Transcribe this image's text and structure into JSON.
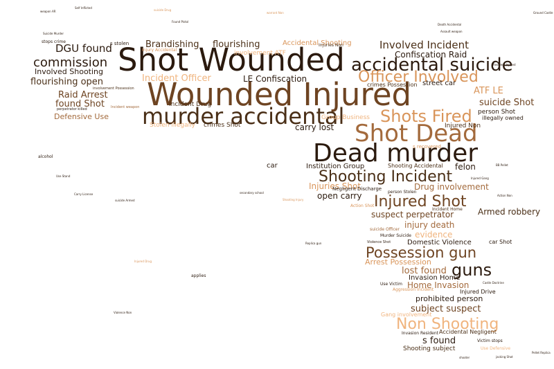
{
  "palette": {
    "darkest": "#2b1a0e",
    "dark": "#4a2f17",
    "brown": "#6e4422",
    "mid": "#a36a3c",
    "light": "#d9955a",
    "pale": "#f0b47e"
  },
  "words": [
    {
      "text": "Shot Wounded",
      "tone": "darkest"
    },
    {
      "text": "Wounded Injured",
      "tone": "brown"
    },
    {
      "text": "Dead murder",
      "tone": "darkest"
    },
    {
      "text": "Shot Dead",
      "tone": "mid"
    },
    {
      "text": "murder accidental",
      "tone": "dark"
    },
    {
      "text": "accidental suicide",
      "tone": "darkest"
    },
    {
      "text": "Shots Fired",
      "tone": "light"
    },
    {
      "text": "Officer Involved",
      "tone": "light"
    },
    {
      "text": "Shooting Incident",
      "tone": "dark"
    },
    {
      "text": "Injured Shot",
      "tone": "brown"
    },
    {
      "text": "Possession gun",
      "tone": "brown"
    },
    {
      "text": "Non Shooting",
      "tone": "pale"
    },
    {
      "text": "guns",
      "tone": "darkest"
    },
    {
      "text": "Involved Incident",
      "tone": "dark"
    },
    {
      "text": "commission",
      "tone": "darkest"
    },
    {
      "text": "DGU found",
      "tone": "darkest"
    },
    {
      "text": "Brandishing",
      "tone": "dark"
    },
    {
      "text": "flourishing",
      "tone": "dark"
    },
    {
      "text": "Confiscation Raid",
      "tone": "darkest"
    },
    {
      "text": "Involved Shooting",
      "tone": "darkest"
    },
    {
      "text": "flourishing open",
      "tone": "dark"
    },
    {
      "text": "Incident Officer",
      "tone": "pale"
    },
    {
      "text": "LE Confiscation",
      "tone": "darkest"
    },
    {
      "text": "Raid Arrest",
      "tone": "brown"
    },
    {
      "text": "found Shot",
      "tone": "brown"
    },
    {
      "text": "Defensive Use",
      "tone": "mid"
    },
    {
      "text": "suicide Shot",
      "tone": "brown"
    },
    {
      "text": "ATF LE",
      "tone": "light"
    },
    {
      "text": "carry lost",
      "tone": "darkest"
    },
    {
      "text": "car",
      "tone": "darkest"
    },
    {
      "text": "Institution Group",
      "tone": "darkest"
    },
    {
      "text": "felon",
      "tone": "darkest"
    },
    {
      "text": "Drug involvement",
      "tone": "mid"
    },
    {
      "text": "Injuries Shot",
      "tone": "light"
    },
    {
      "text": "open carry",
      "tone": "darkest"
    },
    {
      "text": "suspect perpetrator",
      "tone": "brown"
    },
    {
      "text": "injury death",
      "tone": "mid"
    },
    {
      "text": "evidence",
      "tone": "pale"
    },
    {
      "text": "Armed robbery",
      "tone": "dark"
    },
    {
      "text": "Domestic Violence",
      "tone": "darkest"
    },
    {
      "text": "lost found",
      "tone": "mid"
    },
    {
      "text": "Arrest Possession",
      "tone": "light"
    },
    {
      "text": "Invasion Home",
      "tone": "darkest"
    },
    {
      "text": "Home Invasion",
      "tone": "mid"
    },
    {
      "text": "prohibited person",
      "tone": "darkest"
    },
    {
      "text": "subject suspect",
      "tone": "brown"
    },
    {
      "text": "s found",
      "tone": "darkest"
    },
    {
      "text": "Shooting subject",
      "tone": "dark"
    },
    {
      "text": "street car",
      "tone": "darkest"
    },
    {
      "text": "Accidental Shooting",
      "tone": "light"
    },
    {
      "text": "Incident Drug",
      "tone": "dark"
    },
    {
      "text": "crimes Shot",
      "tone": "dark"
    },
    {
      "text": "Stolen illegally",
      "tone": "pale"
    },
    {
      "text": "Group Business",
      "tone": "pale"
    },
    {
      "text": "Injured Non",
      "tone": "dark"
    },
    {
      "text": "person Shot",
      "tone": "darkest"
    },
    {
      "text": "illegally owned",
      "tone": "darkest"
    },
    {
      "text": "Shooting Accidental",
      "tone": "dark"
    },
    {
      "text": "Injured Drive",
      "tone": "darkest"
    },
    {
      "text": "Gang involvement",
      "tone": "pale"
    },
    {
      "text": "Accidental Negligent",
      "tone": "dark"
    },
    {
      "text": "Invasion Resident",
      "tone": "darkest"
    },
    {
      "text": "Victim stops",
      "tone": "darkest"
    },
    {
      "text": "Use Defensive",
      "tone": "pale"
    },
    {
      "text": "Negligent Discharge",
      "tone": "darkest"
    },
    {
      "text": "person Stolen",
      "tone": "darkest"
    },
    {
      "text": "crimes Possession",
      "tone": "dark"
    },
    {
      "text": "Injuries Non",
      "tone": "dark"
    },
    {
      "text": "Incident Home",
      "tone": "dark"
    },
    {
      "text": "suicide Officer",
      "tone": "mid"
    },
    {
      "text": "Murder Suicide",
      "tone": "darkest"
    },
    {
      "text": "car Shot",
      "tone": "darkest"
    },
    {
      "text": "Use Victim",
      "tone": "darkest"
    },
    {
      "text": "Aggression Incident",
      "tone": "light"
    },
    {
      "text": "involvement ATF",
      "tone": "pale"
    },
    {
      "text": "s stolen",
      "tone": "darkest"
    },
    {
      "text": "stops crime",
      "tone": "darkest"
    },
    {
      "text": "Injury Accidental",
      "tone": "light"
    },
    {
      "text": "Incident weapon",
      "tone": "mid"
    },
    {
      "text": "involvement Possession",
      "tone": "dark"
    },
    {
      "text": "perpetrator killed",
      "tone": "darkest"
    },
    {
      "text": "Action Shot",
      "tone": "light"
    },
    {
      "text": "s recovered",
      "tone": "light"
    },
    {
      "text": "alcohol",
      "tone": "darkest"
    },
    {
      "text": "applies",
      "tone": "darkest"
    },
    {
      "text": "Self Inflicted",
      "tone": "darkest"
    },
    {
      "text": "Ground Castle",
      "tone": "darkest"
    },
    {
      "text": "Death Accidental",
      "tone": "darkest"
    },
    {
      "text": "Found Pistol",
      "tone": "darkest"
    },
    {
      "text": "Suicide Murder",
      "tone": "darkest"
    },
    {
      "text": "weapon AR",
      "tone": "darkest"
    },
    {
      "text": "Assault weapon",
      "tone": "darkest"
    },
    {
      "text": "BB Pellet",
      "tone": "darkest"
    },
    {
      "text": "Pellet Replica",
      "tone": "darkest"
    },
    {
      "text": "Violence Non",
      "tone": "darkest"
    },
    {
      "text": "Use Stand",
      "tone": "darkest"
    },
    {
      "text": "Carry License",
      "tone": "darkest"
    },
    {
      "text": "suicide Armed",
      "tone": "darkest"
    },
    {
      "text": "Replica gun",
      "tone": "darkest"
    },
    {
      "text": "Injured Drug",
      "tone": "light"
    },
    {
      "text": "warrant Non",
      "tone": "light"
    },
    {
      "text": "suicide Drug",
      "tone": "light"
    },
    {
      "text": "Action Non",
      "tone": "darkest"
    },
    {
      "text": "Resident Injured",
      "tone": "darkest"
    },
    {
      "text": "Injured Gang",
      "tone": "darkest"
    },
    {
      "text": "secondary school",
      "tone": "darkest"
    },
    {
      "text": "Shooting Injury",
      "tone": "light"
    },
    {
      "text": "jacking Shot",
      "tone": "darkest"
    },
    {
      "text": "shooter",
      "tone": "darkest"
    },
    {
      "text": "Castle Doctrine",
      "tone": "darkest"
    },
    {
      "text": "Violence Shot",
      "tone": "darkest"
    }
  ]
}
